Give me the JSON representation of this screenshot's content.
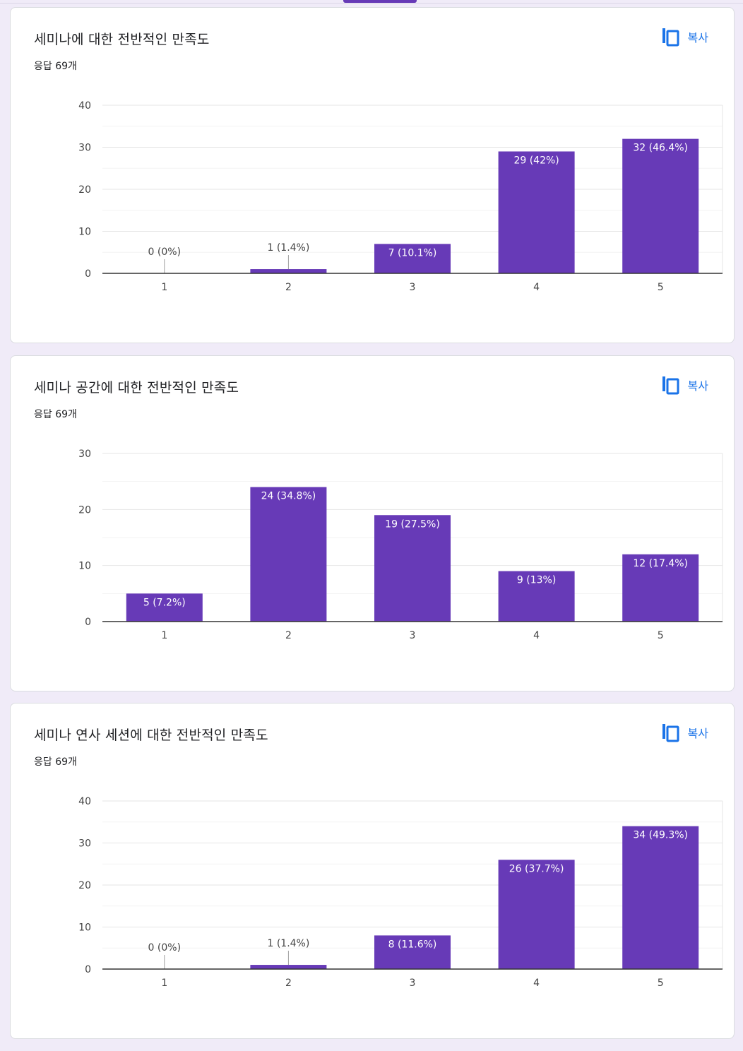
{
  "theme": {
    "accent": "#673ab7",
    "link": "#1a73e8",
    "background": "#f0ebf8"
  },
  "cards": [
    {
      "title": "세미나에 대한 전반적인 만족도",
      "response_count": "응답 69개",
      "copy_label": "복사",
      "copy_icon": "copy-icon"
    },
    {
      "title": "세미나 공간에 대한 전반적인 만족도",
      "response_count": "응답 69개",
      "copy_label": "복사",
      "copy_icon": "copy-icon"
    },
    {
      "title": "세미나 연사 세션에 대한 전반적인 만족도",
      "response_count": "응답 69개",
      "copy_label": "복사",
      "copy_icon": "copy-icon"
    }
  ],
  "chart_data": [
    {
      "type": "bar",
      "categories": [
        "1",
        "2",
        "3",
        "4",
        "5"
      ],
      "values": [
        0,
        1,
        7,
        29,
        32
      ],
      "labels": [
        "0 (0%)",
        "1 (1.4%)",
        "7 (10.1%)",
        "29 (42%)",
        "32 (46.4%)"
      ],
      "ylim": [
        0,
        40
      ],
      "yticks": [
        0,
        10,
        20,
        30,
        40
      ],
      "grid": true,
      "bar_color": "#673ab7"
    },
    {
      "type": "bar",
      "categories": [
        "1",
        "2",
        "3",
        "4",
        "5"
      ],
      "values": [
        5,
        24,
        19,
        9,
        12
      ],
      "labels": [
        "5 (7.2%)",
        "24 (34.8%)",
        "19 (27.5%)",
        "9 (13%)",
        "12 (17.4%)"
      ],
      "ylim": [
        0,
        30
      ],
      "yticks": [
        0,
        10,
        20,
        30
      ],
      "grid": true,
      "bar_color": "#673ab7"
    },
    {
      "type": "bar",
      "categories": [
        "1",
        "2",
        "3",
        "4",
        "5"
      ],
      "values": [
        0,
        1,
        8,
        26,
        34
      ],
      "labels": [
        "0 (0%)",
        "1 (1.4%)",
        "8 (11.6%)",
        "26 (37.7%)",
        "34 (49.3%)"
      ],
      "ylim": [
        0,
        40
      ],
      "yticks": [
        0,
        10,
        20,
        30,
        40
      ],
      "grid": true,
      "bar_color": "#673ab7"
    }
  ]
}
